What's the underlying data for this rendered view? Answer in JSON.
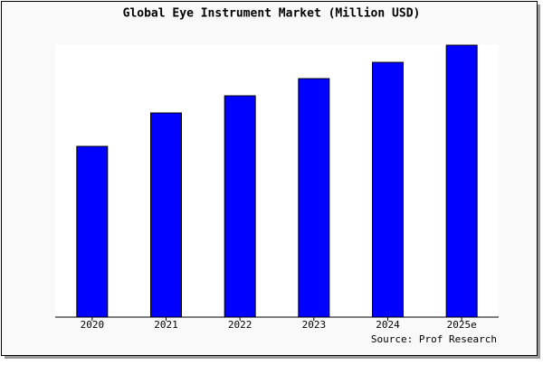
{
  "chart_data": {
    "type": "bar",
    "title": "Global Eye Instrument Market (Million USD)",
    "categories": [
      "2020",
      "2021",
      "2022",
      "2023",
      "2024",
      "2025e"
    ],
    "values": [
      189,
      226,
      245,
      264,
      282,
      301
    ],
    "color": "#0000ff",
    "ylim": [
      0,
      302
    ],
    "grid": false,
    "source": "Source: Prof Research"
  }
}
